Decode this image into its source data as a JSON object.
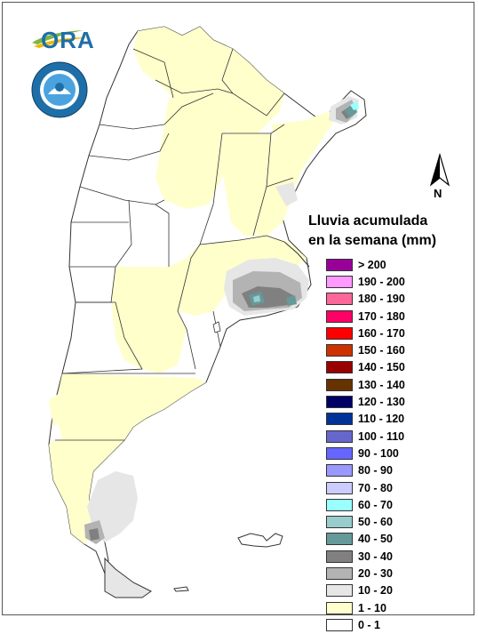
{
  "legend": {
    "title_line1": "Lluvia acumulada",
    "title_line2": "en la semana (mm)",
    "items": [
      {
        "label": "> 200",
        "color": "#990099"
      },
      {
        "label": "190 - 200",
        "color": "#ff99ff"
      },
      {
        "label": "180 - 190",
        "color": "#ff6699"
      },
      {
        "label": "170 - 180",
        "color": "#ff0066"
      },
      {
        "label": "160 - 170",
        "color": "#ff0000"
      },
      {
        "label": "150 - 160",
        "color": "#cc3300"
      },
      {
        "label": "140 - 150",
        "color": "#990000"
      },
      {
        "label": "130 - 140",
        "color": "#663300"
      },
      {
        "label": "120 - 130",
        "color": "#000066"
      },
      {
        "label": "110 - 120",
        "color": "#003399"
      },
      {
        "label": "100 - 110",
        "color": "#6666cc"
      },
      {
        "label": "90 - 100",
        "color": "#6666ff"
      },
      {
        "label": "80 - 90",
        "color": "#9999ff"
      },
      {
        "label": "70 - 80",
        "color": "#ccccff"
      },
      {
        "label": "60 - 70",
        "color": "#99ffff"
      },
      {
        "label": "50 - 60",
        "color": "#99cccc"
      },
      {
        "label": "40 - 50",
        "color": "#669999"
      },
      {
        "label": "30 - 40",
        "color": "#808080"
      },
      {
        "label": "20 - 30",
        "color": "#b3b3b3"
      },
      {
        "label": "10 - 20",
        "color": "#e6e6e6"
      },
      {
        "label": "1 - 10",
        "color": "#ffffcc"
      },
      {
        "label": "0 - 1",
        "color": "#ffffff"
      }
    ]
  },
  "logo": {
    "text": "ORA"
  },
  "north_arrow": {
    "label": "N"
  },
  "colors": {
    "border": "#333333",
    "land": "#ffffff",
    "light_rain": "#ffffcc"
  }
}
